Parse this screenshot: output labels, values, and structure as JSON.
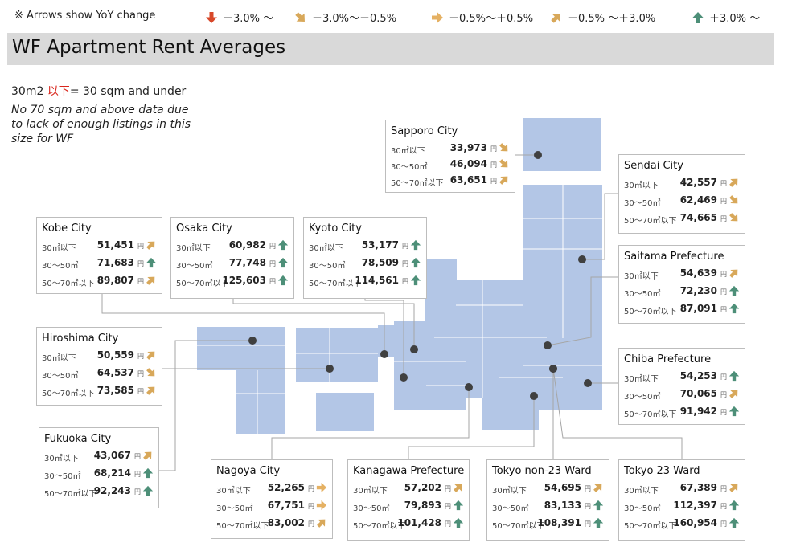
{
  "legend": {
    "note": "※ Arrows show YoY change",
    "items": [
      {
        "label": "－3.0% ～",
        "dir": "down"
      },
      {
        "label": "－3.0%～－0.5%",
        "dir": "downright"
      },
      {
        "label": "－0.5%～＋0.5%",
        "dir": "right"
      },
      {
        "label": "＋0.5% ～＋3.0%",
        "dir": "upright"
      },
      {
        "label": "＋3.0% ～",
        "dir": "up"
      }
    ]
  },
  "title": "WF Apartment Rent Averages",
  "subtitle": {
    "prefix": "30m2 ",
    "highlight": "以下",
    "suffix": "= 30 sqm and under"
  },
  "note": "No 70 sqm and above data due to lack of enough listings in this size for WF",
  "colors": {
    "down": "#d8482a",
    "downright": "#d8a85a",
    "right": "#e5b163",
    "upright": "#d8a85a",
    "up": "#4d8f78",
    "map": "#b3c6e6"
  },
  "chart_data": {
    "type": "table",
    "unit": "円",
    "size_columns": [
      "30㎡以下",
      "30～50㎡",
      "50～70㎡以下"
    ],
    "cities": [
      {
        "name": "Sapporo City",
        "sizes": [
          "30㎡以下",
          "30～50㎡",
          "50～70㎡以下"
        ],
        "values": [
          "33,973",
          "46,094",
          "63,651"
        ],
        "trend": [
          "downright",
          "downright",
          "upright"
        ]
      },
      {
        "name": "Sendai City",
        "sizes": [
          "30㎡以下",
          "30～50㎡",
          "50～70㎡以下"
        ],
        "values": [
          "42,557",
          "62,469",
          "74,665"
        ],
        "trend": [
          "upright",
          "downright",
          "downright"
        ]
      },
      {
        "name": "Saitama Prefecture",
        "sizes": [
          "30㎡以下",
          "30～50㎡",
          "50～70㎡以下"
        ],
        "values": [
          "54,639",
          "72,230",
          "87,091"
        ],
        "trend": [
          "upright",
          "up",
          "up"
        ]
      },
      {
        "name": "Chiba Prefecture",
        "sizes": [
          "30㎡以下",
          "30～50㎡",
          "50～70㎡以下"
        ],
        "values": [
          "54,253",
          "70,065",
          "91,942"
        ],
        "trend": [
          "up",
          "upright",
          "up"
        ]
      },
      {
        "name": "Kobe City",
        "sizes": [
          "30㎡以下",
          "30～50㎡",
          "50～70㎡以下"
        ],
        "values": [
          "51,451",
          "71,683",
          "89,807"
        ],
        "trend": [
          "upright",
          "up",
          "upright"
        ]
      },
      {
        "name": "Osaka City",
        "sizes": [
          "30㎡以下",
          "30～50㎡",
          "50～70㎡以下"
        ],
        "values": [
          "60,982",
          "77,748",
          "125,603"
        ],
        "trend": [
          "up",
          "up",
          "up"
        ]
      },
      {
        "name": "Kyoto City",
        "sizes": [
          "30㎡以下",
          "30～50㎡",
          "50～70㎡以下"
        ],
        "values": [
          "53,177",
          "78,509",
          "114,561"
        ],
        "trend": [
          "up",
          "up",
          "up"
        ]
      },
      {
        "name": "Hiroshima City",
        "sizes": [
          "30㎡以下",
          "30～50㎡",
          "50～70㎡以下"
        ],
        "values": [
          "50,559",
          "64,537",
          "73,585"
        ],
        "trend": [
          "upright",
          "downright",
          "upright"
        ]
      },
      {
        "name": "Fukuoka City",
        "sizes": [
          "30㎡以下",
          "30～50㎡",
          "50～70㎡以下"
        ],
        "values": [
          "43,067",
          "68,214",
          "92,243"
        ],
        "trend": [
          "upright",
          "up",
          "up"
        ]
      },
      {
        "name": "Nagoya City",
        "sizes": [
          "30㎡以下",
          "30～50㎡",
          "50～70㎡以下"
        ],
        "values": [
          "52,265",
          "67,751",
          "83,002"
        ],
        "trend": [
          "right",
          "right",
          "upright"
        ]
      },
      {
        "name": "Kanagawa Prefecture",
        "sizes": [
          "30㎡以下",
          "30～50㎡",
          "50～70㎡以下"
        ],
        "values": [
          "57,202",
          "79,893",
          "101,428"
        ],
        "trend": [
          "upright",
          "up",
          "up"
        ]
      },
      {
        "name": "Tokyo non-23 Ward",
        "sizes": [
          "30㎡以下",
          "30～50㎡",
          "50～70㎡以下"
        ],
        "values": [
          "54,695",
          "83,133",
          "108,391"
        ],
        "trend": [
          "upright",
          "up",
          "up"
        ]
      },
      {
        "name": "Tokyo 23 Ward",
        "sizes": [
          "30㎡以下",
          "30～50㎡",
          "50～70㎡以下"
        ],
        "values": [
          "67,389",
          "112,397",
          "160,954"
        ],
        "trend": [
          "upright",
          "up",
          "up"
        ]
      }
    ]
  }
}
